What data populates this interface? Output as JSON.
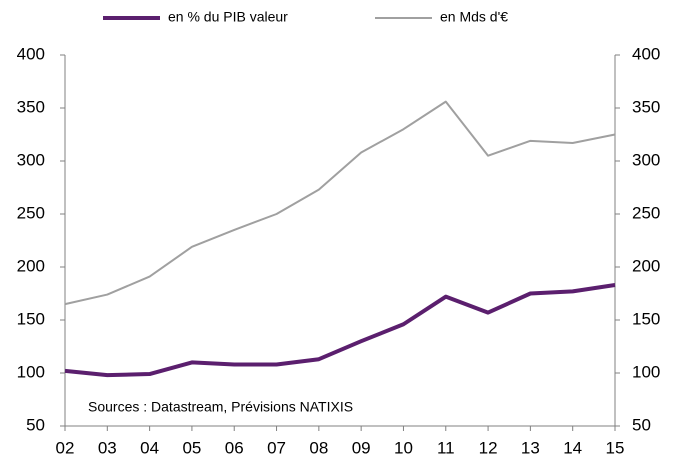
{
  "chart_data": {
    "type": "line",
    "categories": [
      "02",
      "03",
      "04",
      "05",
      "06",
      "07",
      "08",
      "09",
      "10",
      "11",
      "12",
      "13",
      "14",
      "15"
    ],
    "series": [
      {
        "name": "en % du PIB valeur",
        "color": "#5b1f6e",
        "values": [
          102,
          98,
          99,
          110,
          108,
          108,
          113,
          130,
          146,
          172,
          157,
          175,
          177,
          183
        ]
      },
      {
        "name": "en Mds d'€",
        "color": "#a0a0a0",
        "axis": "y2",
        "values": [
          165,
          174,
          191,
          219,
          235,
          250,
          273,
          308,
          330,
          356,
          305,
          319,
          317,
          325
        ]
      }
    ],
    "ylim": [
      50,
      400
    ],
    "yticks": [
      50,
      100,
      150,
      200,
      250,
      300,
      350,
      400
    ],
    "y2lim": [
      50,
      400
    ],
    "y2ticks": [
      50,
      100,
      150,
      200,
      250,
      300,
      350,
      400
    ],
    "annotation": "Sources : Datastream, Prévisions NATIXIS",
    "legend": "top",
    "grid": false
  }
}
